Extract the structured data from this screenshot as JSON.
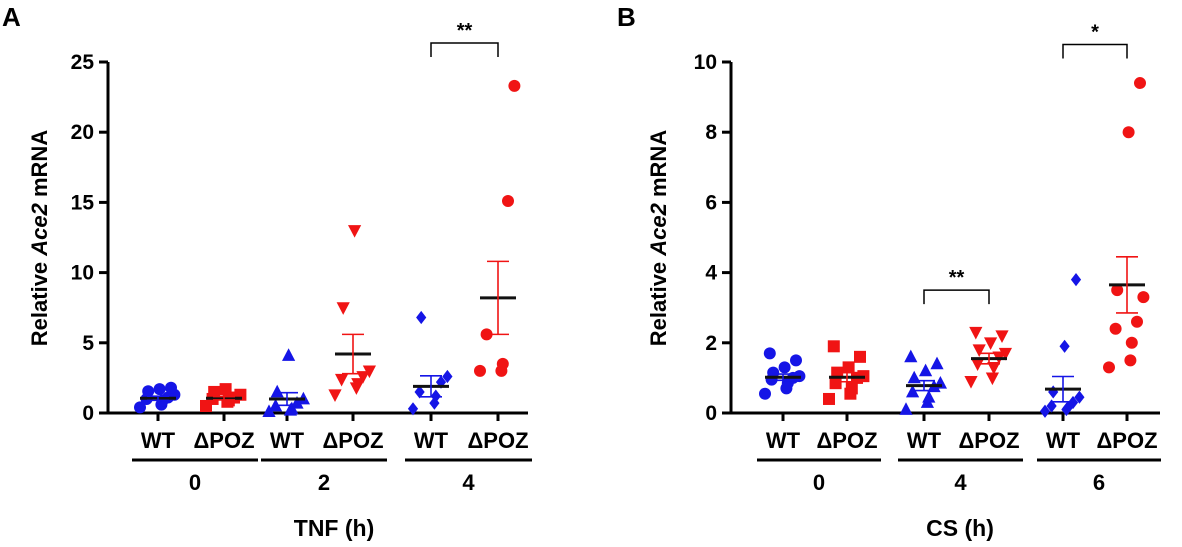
{
  "colors": {
    "WT": "#1515e6",
    "dPOZ": "#f01414",
    "mean": "#111111"
  },
  "chart_data": [
    {
      "panel": "A",
      "type": "scatter",
      "ylabel_pre": "Relative ",
      "ylabel_gene": "Ace2",
      "ylabel_post": " mRNA",
      "xlabel": "TNF (h)",
      "ylim": [
        0,
        25
      ],
      "yticks": [
        "0",
        "5",
        "10",
        "15",
        "20",
        "25"
      ],
      "ytick_values": [
        0,
        5,
        10,
        15,
        20,
        25
      ],
      "time_labels": [
        "0",
        "2",
        "4"
      ],
      "groups": [
        {
          "label": "WT",
          "genotype": "WT",
          "time": "0",
          "marker": "circle",
          "mean": 1.05,
          "sem": 0.15,
          "points": [
            0.4,
            0.6,
            0.9,
            1.0,
            1.1,
            1.3,
            1.55,
            1.7,
            1.8
          ]
        },
        {
          "label": "ΔPOZ",
          "genotype": "dPOZ",
          "time": "0",
          "marker": "square",
          "mean": 1.05,
          "sem": 0.12,
          "points": [
            0.5,
            0.8,
            0.9,
            1.0,
            1.1,
            1.3,
            1.5,
            1.7
          ]
        },
        {
          "label": "WT",
          "genotype": "WT",
          "time": "2",
          "marker": "triangle-up",
          "mean": 1.0,
          "sem": 0.45,
          "points": [
            0.1,
            0.2,
            0.3,
            0.5,
            0.7,
            1.0,
            1.5,
            4.1
          ]
        },
        {
          "label": "ΔPOZ",
          "genotype": "dPOZ",
          "time": "2",
          "marker": "triangle-down",
          "mean": 4.2,
          "sem": 1.4,
          "points": [
            1.3,
            1.8,
            2.1,
            2.4,
            2.6,
            3.0,
            7.5,
            13.0
          ]
        },
        {
          "label": "WT",
          "genotype": "WT",
          "time": "4",
          "marker": "diamond",
          "mean": 1.9,
          "sem": 0.75,
          "points": [
            0.3,
            0.7,
            1.2,
            1.5,
            2.2,
            2.6,
            6.8
          ]
        },
        {
          "label": "ΔPOZ",
          "genotype": "dPOZ",
          "time": "4",
          "marker": "circle",
          "mean": 8.2,
          "sem": 2.6,
          "points": [
            3.0,
            3.0,
            3.5,
            5.6,
            15.1,
            23.3
          ]
        }
      ],
      "significance": [
        {
          "from": 4,
          "to": 5,
          "label": "**",
          "y": 25.5
        }
      ]
    },
    {
      "panel": "B",
      "type": "scatter",
      "ylabel_pre": "Relative ",
      "ylabel_gene": "Ace2",
      "ylabel_post": " mRNA",
      "xlabel": "CS (h)",
      "ylim": [
        0,
        10
      ],
      "yticks": [
        "0",
        "2",
        "4",
        "6",
        "8",
        "10"
      ],
      "ytick_values": [
        0,
        2,
        4,
        6,
        8,
        10
      ],
      "time_labels": [
        "0",
        "4",
        "6"
      ],
      "groups": [
        {
          "label": "WT",
          "genotype": "WT",
          "time": "0",
          "marker": "circle",
          "mean": 1.02,
          "sem": 0.09,
          "points": [
            0.55,
            0.7,
            0.85,
            0.95,
            1.0,
            1.05,
            1.15,
            1.3,
            1.5,
            1.7
          ]
        },
        {
          "label": "ΔPOZ",
          "genotype": "dPOZ",
          "time": "0",
          "marker": "square",
          "mean": 1.02,
          "sem": 0.13,
          "points": [
            0.4,
            0.55,
            0.7,
            0.85,
            1.0,
            1.05,
            1.15,
            1.3,
            1.6,
            1.9
          ]
        },
        {
          "label": "WT",
          "genotype": "WT",
          "time": "4",
          "marker": "triangle-up",
          "mean": 0.78,
          "sem": 0.14,
          "points": [
            0.1,
            0.3,
            0.45,
            0.6,
            0.75,
            0.85,
            1.0,
            1.2,
            1.4,
            1.6
          ]
        },
        {
          "label": "ΔPOZ",
          "genotype": "dPOZ",
          "time": "4",
          "marker": "triangle-down",
          "mean": 1.55,
          "sem": 0.15,
          "points": [
            0.9,
            1.0,
            1.3,
            1.4,
            1.6,
            1.7,
            1.8,
            2.0,
            2.2,
            2.3
          ]
        },
        {
          "label": "WT",
          "genotype": "WT",
          "time": "6",
          "marker": "diamond",
          "mean": 0.68,
          "sem": 0.36,
          "points": [
            0.05,
            0.1,
            0.15,
            0.2,
            0.3,
            0.45,
            0.6,
            1.9,
            3.8
          ]
        },
        {
          "label": "ΔPOZ",
          "genotype": "dPOZ",
          "time": "6",
          "marker": "circle",
          "mean": 3.65,
          "sem": 0.8,
          "points": [
            1.3,
            1.5,
            2.0,
            2.4,
            2.6,
            3.3,
            3.5,
            8.0,
            9.4
          ]
        }
      ],
      "significance": [
        {
          "from": 2,
          "to": 3,
          "label": "**",
          "y": 3.5
        },
        {
          "from": 4,
          "to": 5,
          "label": "*",
          "y": 10.5
        }
      ]
    }
  ]
}
